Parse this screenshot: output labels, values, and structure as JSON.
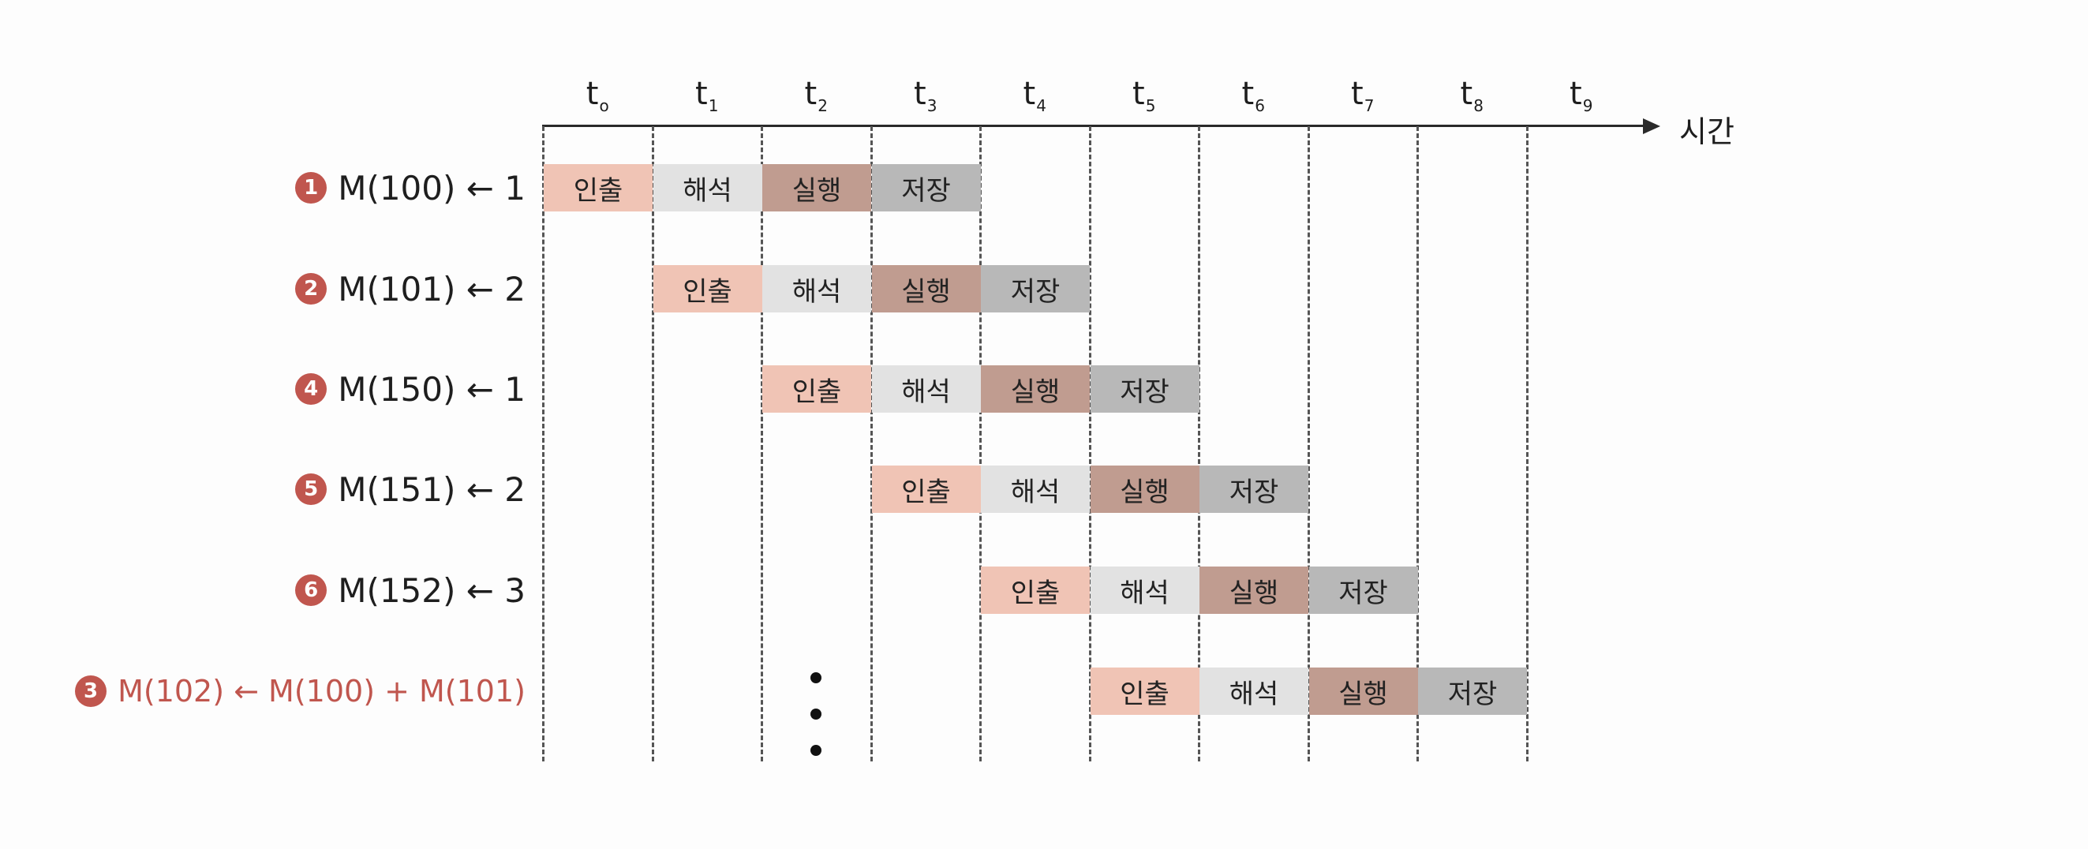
{
  "time_axis": {
    "ticks": [
      {
        "base": "t",
        "sub": "o"
      },
      {
        "base": "t",
        "sub": "1"
      },
      {
        "base": "t",
        "sub": "2"
      },
      {
        "base": "t",
        "sub": "3"
      },
      {
        "base": "t",
        "sub": "4"
      },
      {
        "base": "t",
        "sub": "5"
      },
      {
        "base": "t",
        "sub": "6"
      },
      {
        "base": "t",
        "sub": "7"
      },
      {
        "base": "t",
        "sub": "8"
      },
      {
        "base": "t",
        "sub": "9"
      }
    ],
    "label": "시간"
  },
  "stages": [
    {
      "label": "인출",
      "kind": "fetch"
    },
    {
      "label": "해석",
      "kind": "decode"
    },
    {
      "label": "실행",
      "kind": "exec"
    },
    {
      "label": "저장",
      "kind": "store"
    }
  ],
  "rows": [
    {
      "badge": "1",
      "text": "M(100) ← 1",
      "start": 0,
      "highlight": false
    },
    {
      "badge": "2",
      "text": "M(101) ← 2",
      "start": 1,
      "highlight": false
    },
    {
      "badge": "4",
      "text": "M(150) ← 1",
      "start": 2,
      "highlight": false
    },
    {
      "badge": "5",
      "text": "M(151) ← 2",
      "start": 3,
      "highlight": false
    },
    {
      "badge": "6",
      "text": "M(152) ← 3",
      "start": 4,
      "highlight": false
    },
    {
      "badge": "3",
      "text": "M(102) ← M(100) + M(101)",
      "start": 5,
      "highlight": true
    }
  ],
  "colors": {
    "fetch": "#f0c4b5",
    "decode": "#e2e2e2",
    "exec": "#c09c90",
    "store": "#b8b8b8",
    "badge": "#c0564e",
    "highlight_text": "#c0564e"
  }
}
